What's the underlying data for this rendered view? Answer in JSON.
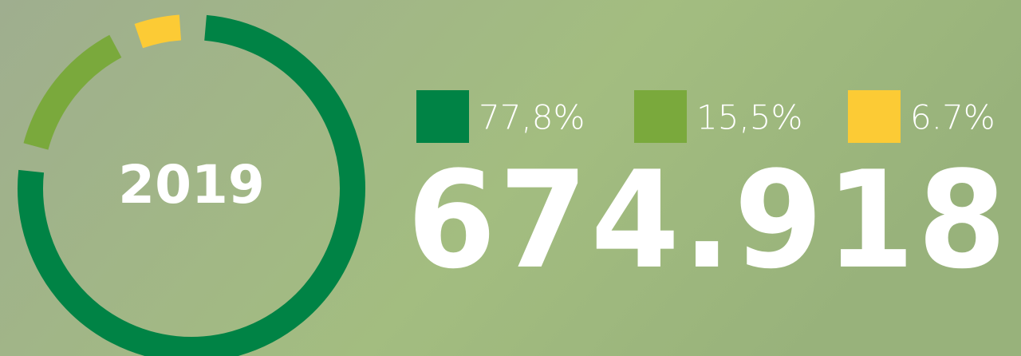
{
  "chart_data": {
    "type": "pie",
    "categories": [
      null,
      null,
      null
    ],
    "values": [
      77.8,
      15.5,
      6.7
    ],
    "value_labels": [
      "77,8%",
      "15,5%",
      "6.7%"
    ],
    "colors": [
      "#008345",
      "#7aa93c",
      "#fccb35"
    ],
    "annotations": [
      "2019",
      "674.918"
    ]
  }
}
